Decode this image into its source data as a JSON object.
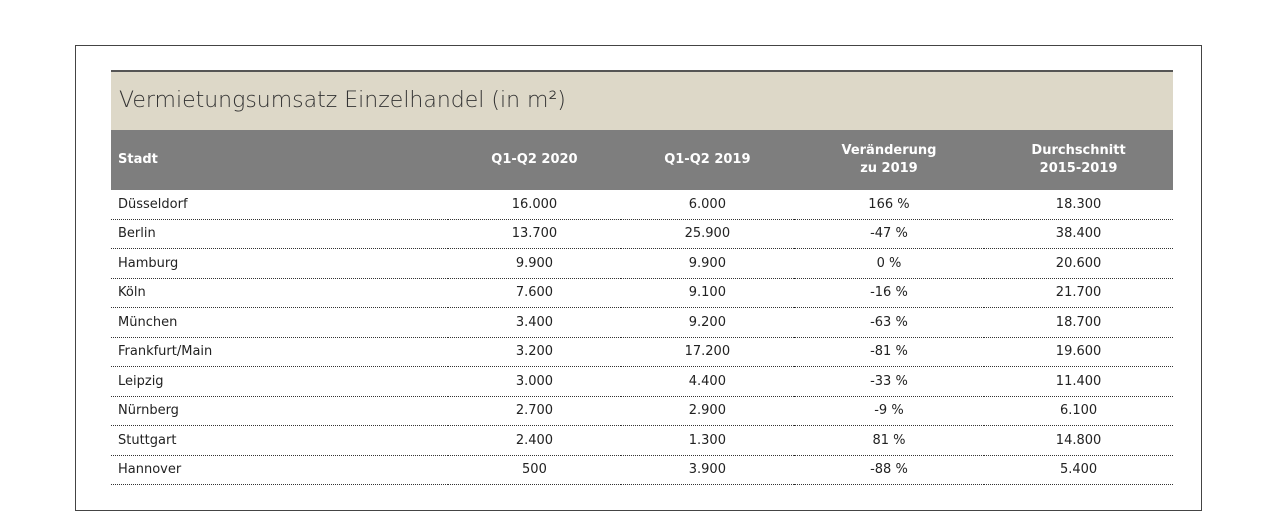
{
  "table": {
    "title": "Vermietungsumsatz Einzelhandel (in m²)",
    "header": [
      "Stadt",
      "Q1-Q2 2020",
      "Q1-Q2 2019",
      "Veränderung\nzu 2019",
      "Durchschnitt\n2015-2019"
    ],
    "rows": [
      [
        "Düsseldorf",
        "16.000",
        "6.000",
        "166 %",
        "18.300"
      ],
      [
        "Berlin",
        "13.700",
        "25.900",
        "-47 %",
        "38.400"
      ],
      [
        "Hamburg",
        "9.900",
        "9.900",
        "0 %",
        "20.600"
      ],
      [
        "Köln",
        "7.600",
        "9.100",
        "-16 %",
        "21.700"
      ],
      [
        "München",
        "3.400",
        "9.200",
        "-63 %",
        "18.700"
      ],
      [
        "Frankfurt/Main",
        "3.200",
        "17.200",
        "-81 %",
        "19.600"
      ],
      [
        "Leipzig",
        "3.000",
        "4.400",
        "-33 %",
        "11.400"
      ],
      [
        "Nürnberg",
        "2.700",
        "2.900",
        "-9 %",
        "6.100"
      ],
      [
        "Stuttgart",
        "2.400",
        "1.300",
        "81 %",
        "14.800"
      ],
      [
        "Hannover",
        "500",
        "3.900",
        "-88 %",
        "5.400"
      ]
    ]
  }
}
